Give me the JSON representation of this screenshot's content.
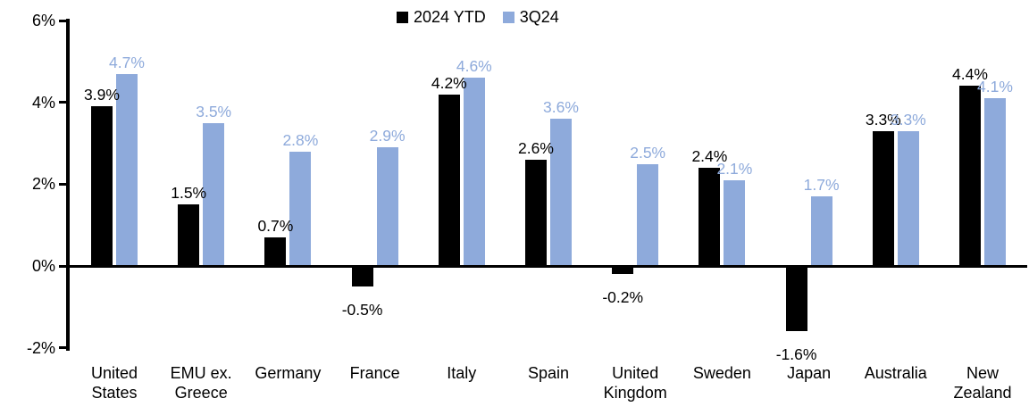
{
  "legend": {
    "items": [
      {
        "label": "2024 YTD",
        "color": "#000000"
      },
      {
        "label": "3Q24",
        "color": "#8EAADB"
      }
    ]
  },
  "chart_data": {
    "type": "bar",
    "title": "",
    "xlabel": "",
    "ylabel": "",
    "unit": "%",
    "grid": false,
    "legend_position": "top-center",
    "ylim": [
      -2,
      6
    ],
    "categories": [
      "United States",
      "EMU ex. Greece",
      "Germany",
      "France",
      "Italy",
      "Spain",
      "United Kingdom",
      "Sweden",
      "Japan",
      "Australia",
      "New Zealand"
    ],
    "category_label_lines": [
      [
        "United",
        "States"
      ],
      [
        "EMU ex.",
        "Greece"
      ],
      [
        "Germany"
      ],
      [
        "France"
      ],
      [
        "Italy"
      ],
      [
        "Spain"
      ],
      [
        "United",
        "Kingdom"
      ],
      [
        "Sweden"
      ],
      [
        "Japan"
      ],
      [
        "Australia"
      ],
      [
        "New",
        "Zealand"
      ]
    ],
    "series": [
      {
        "name": "2024 YTD",
        "color": "#000000",
        "values": [
          3.9,
          1.5,
          0.7,
          -0.5,
          4.2,
          2.6,
          -0.2,
          2.4,
          -1.6,
          3.3,
          4.4
        ],
        "labels": [
          "3.9%",
          "1.5%",
          "0.7%",
          "-0.5%",
          "4.2%",
          "2.6%",
          "-0.2%",
          "2.4%",
          "-1.6%",
          "3.3%",
          "4.4%"
        ]
      },
      {
        "name": "3Q24",
        "color": "#8EAADB",
        "values": [
          4.7,
          3.5,
          2.8,
          2.9,
          4.6,
          3.6,
          2.5,
          2.1,
          1.7,
          3.3,
          4.1
        ],
        "labels": [
          "4.7%",
          "3.5%",
          "2.8%",
          "2.9%",
          "4.6%",
          "3.6%",
          "2.5%",
          "2.1%",
          "1.7%",
          "3.3%",
          "4.1%"
        ]
      }
    ],
    "y_axis": {
      "ticks": [
        {
          "value": 6,
          "label": "6%"
        },
        {
          "value": 4,
          "label": "4%"
        },
        {
          "value": 2,
          "label": "2%"
        },
        {
          "value": 0,
          "label": "0%"
        },
        {
          "value": -2,
          "label": "-2%"
        }
      ]
    }
  }
}
